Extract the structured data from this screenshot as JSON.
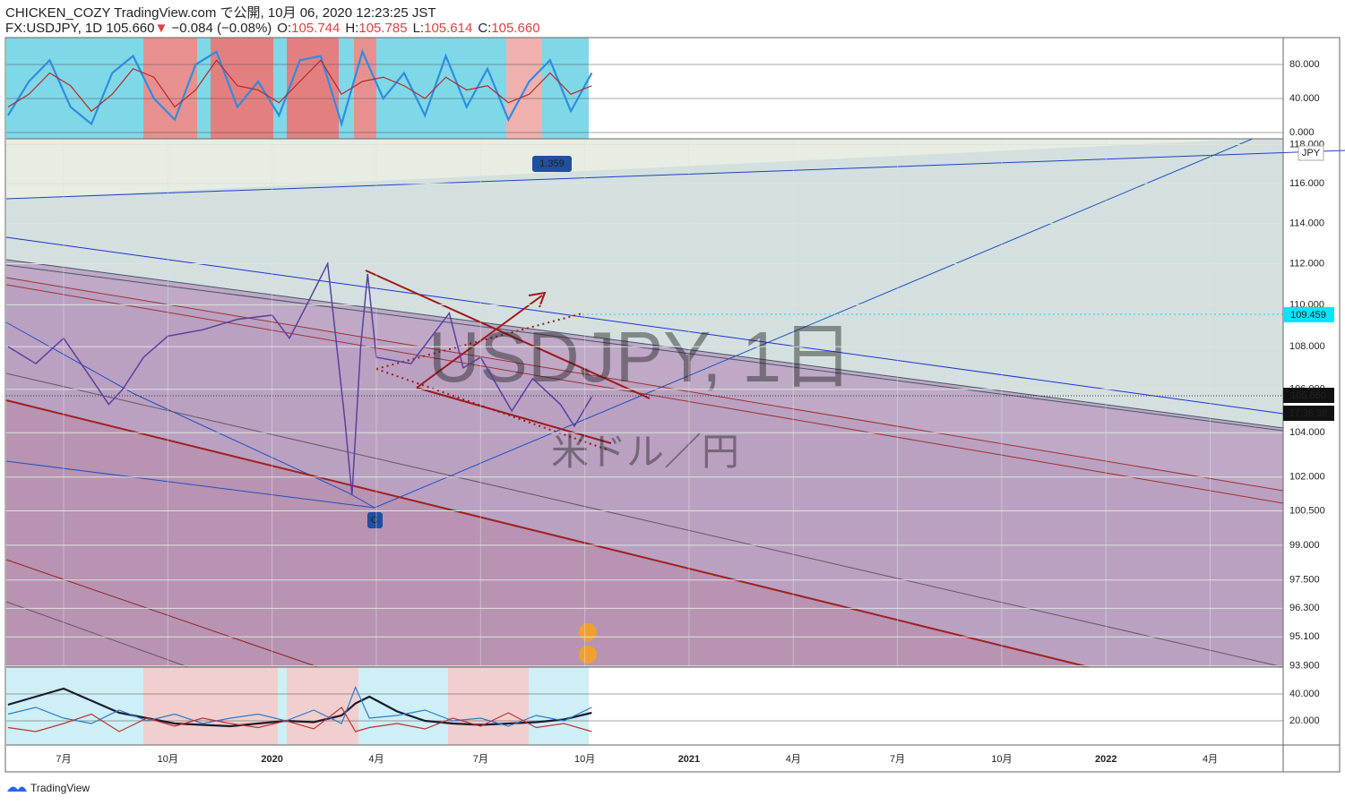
{
  "header": {
    "line1": "CHICKEN_COZY TradingView.com で公開, 10月 06, 2020 12:23:25 JST",
    "symbol": "FX:USDJPY, 1D",
    "price": "105.660",
    "arrow": "▼",
    "change": "−0.084 (−0.08%)",
    "ohlc": [
      {
        "label": "O:",
        "value": "105.744"
      },
      {
        "label": "H:",
        "value": "105.785"
      },
      {
        "label": "L:",
        "value": "105.614"
      },
      {
        "label": "C:",
        "value": "105.660"
      }
    ]
  },
  "watermark": {
    "symbol": "USDJPY, 1日",
    "description": "米ドル／円"
  },
  "badges": {
    "ratio": "1.359",
    "point": "C",
    "currency": "JPY"
  },
  "price_labels": {
    "level": "109.459",
    "last": "105.660",
    "countdown": "17:36:38"
  },
  "footer": "TradingView",
  "chart_data": [
    {
      "type": "line",
      "name": "price",
      "log_scale": true,
      "color": "#5b3fa0",
      "x": [
        -1.6,
        -0.8,
        0,
        0.8,
        1.3,
        1.7,
        2.3,
        3,
        4,
        5,
        6,
        6.5,
        7,
        7.6,
        8.1,
        8.3,
        8.55,
        8.75,
        9,
        10,
        11.1,
        11.5,
        12,
        12.9,
        13.5,
        14.3,
        14.7,
        15.2
      ],
      "values": [
        108,
        107.2,
        108.4,
        106.5,
        105.3,
        106,
        107.5,
        108.5,
        108.8,
        109.3,
        109.5,
        108.4,
        110,
        112,
        104.5,
        101.2,
        108,
        111.5,
        107.5,
        107.2,
        109.6,
        107,
        107.5,
        105,
        106.5,
        105.3,
        104.3,
        105.66
      ],
      "xlim": [
        -1.65,
        35.1
      ],
      "ylim": [
        93.85,
        118.3
      ],
      "xticks": [
        {
          "value": 0,
          "label": "7月"
        },
        {
          "value": 3,
          "label": "10月"
        },
        {
          "value": 6,
          "label": "2020"
        },
        {
          "value": 9,
          "label": "4月"
        },
        {
          "value": 12,
          "label": "7月"
        },
        {
          "value": 15,
          "label": "10月"
        },
        {
          "value": 18,
          "label": "2021"
        },
        {
          "value": 21,
          "label": "4月"
        },
        {
          "value": 24,
          "label": "7月"
        },
        {
          "value": 27,
          "label": "10月"
        },
        {
          "value": 30,
          "label": "2022"
        },
        {
          "value": 33,
          "label": "4月"
        }
      ],
      "yticks": [
        {
          "value": 93.9,
          "label": "93.900"
        },
        {
          "value": 95.1,
          "label": "95.100"
        },
        {
          "value": 96.3,
          "label": "96.300"
        },
        {
          "value": 97.5,
          "label": "97.500"
        },
        {
          "value": 99,
          "label": "99.000"
        },
        {
          "value": 100.5,
          "label": "100.500"
        },
        {
          "value": 102,
          "label": "102.000"
        },
        {
          "value": 104,
          "label": "104.000"
        },
        {
          "value": 106,
          "label": "106.000"
        },
        {
          "value": 108,
          "label": "108.000"
        },
        {
          "value": 110,
          "label": "110.000"
        },
        {
          "value": 112,
          "label": "112.000"
        },
        {
          "value": 114,
          "label": "114.000"
        },
        {
          "value": 116,
          "label": "116.000"
        },
        {
          "value": 118,
          "label": "118.000"
        }
      ]
    },
    {
      "type": "line",
      "name": "stochastic",
      "ylim": [
        -7.4,
        111.6
      ],
      "yticks": [
        {
          "value": 0,
          "label": "0.000"
        },
        {
          "value": 40,
          "label": "40.000"
        },
        {
          "value": 80,
          "label": "80.000"
        }
      ],
      "x": [
        -1.6,
        -1,
        -0.4,
        0.2,
        0.8,
        1.4,
        2,
        2.6,
        3.2,
        3.8,
        4.4,
        5,
        5.6,
        6.2,
        6.8,
        7.4,
        8,
        8.6,
        9.2,
        9.8,
        10.4,
        11,
        11.6,
        12.2,
        12.8,
        13.4,
        14,
        14.6,
        15.2
      ],
      "series": [
        {
          "name": "%K",
          "color": "#2e8de0",
          "values": [
            20,
            60,
            85,
            30,
            10,
            70,
            90,
            40,
            15,
            80,
            95,
            30,
            60,
            20,
            85,
            90,
            10,
            95,
            40,
            70,
            20,
            90,
            30,
            75,
            15,
            60,
            85,
            25,
            70
          ]
        },
        {
          "name": "%D",
          "color": "#b52a2a",
          "values": [
            30,
            45,
            70,
            55,
            25,
            45,
            75,
            65,
            30,
            50,
            85,
            55,
            50,
            35,
            60,
            85,
            45,
            60,
            65,
            55,
            40,
            65,
            50,
            55,
            35,
            45,
            70,
            45,
            55
          ]
        }
      ]
    },
    {
      "type": "line",
      "name": "dmi",
      "ylim": [
        2,
        60
      ],
      "yticks": [
        {
          "value": 20,
          "label": "20.000"
        },
        {
          "value": 40,
          "label": "40.000"
        }
      ],
      "x": [
        -1.6,
        -0.8,
        0,
        0.8,
        1.6,
        2.4,
        3.2,
        4,
        4.8,
        5.6,
        6.4,
        7.2,
        8,
        8.4,
        8.8,
        9.6,
        10.4,
        11.2,
        12,
        12.8,
        13.6,
        14.4,
        15.2
      ],
      "series": [
        {
          "name": "ADX",
          "color": "#1a1a2e",
          "values": [
            32,
            38,
            44,
            35,
            26,
            22,
            18,
            17,
            16,
            18,
            20,
            19,
            24,
            33,
            38,
            27,
            20,
            18,
            17,
            18,
            19,
            21,
            26
          ]
        },
        {
          "name": "+DI",
          "color": "#2a7bd0",
          "values": [
            25,
            30,
            22,
            18,
            28,
            20,
            25,
            18,
            22,
            25,
            20,
            28,
            18,
            45,
            22,
            24,
            28,
            20,
            22,
            16,
            24,
            20,
            30
          ]
        },
        {
          "name": "-DI",
          "color": "#c03030",
          "values": [
            15,
            12,
            18,
            25,
            12,
            22,
            16,
            22,
            18,
            15,
            20,
            14,
            30,
            12,
            15,
            18,
            14,
            22,
            16,
            26,
            15,
            18,
            12
          ]
        }
      ]
    }
  ]
}
